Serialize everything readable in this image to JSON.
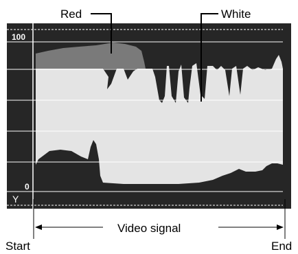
{
  "labels": {
    "red": "Red",
    "white": "White",
    "video_signal": "Video signal",
    "start": "Start",
    "end": "End"
  },
  "scale": {
    "top": "100",
    "bottom": "0",
    "axis": "Y"
  },
  "colors": {
    "screen": "#262626",
    "white_trace": "#e4e4e4",
    "red_trace": "#7a7a7a",
    "grid": "#ffffff"
  }
}
